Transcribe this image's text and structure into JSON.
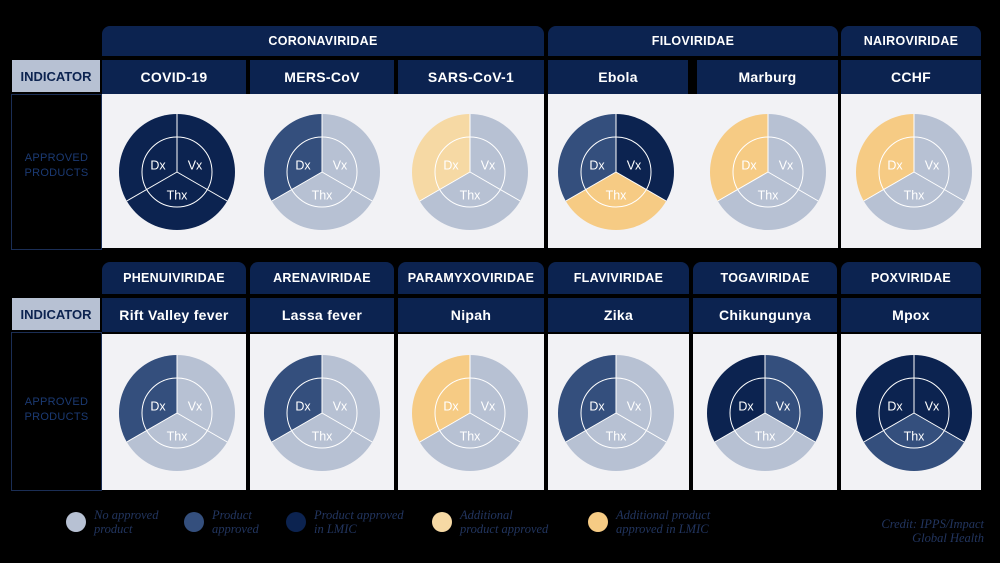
{
  "indicator_label": "INDICATOR",
  "approved_label": [
    "APPROVED",
    "PRODUCTS"
  ],
  "segment_labels": {
    "dx": "Dx",
    "vx": "Vx",
    "thx": "Thx"
  },
  "colors": {
    "none": "#b7c1d3",
    "product": "#344f7d",
    "lmic": "#0c2350",
    "additional": "#f6d9a4",
    "additional_lmic": "#f6cb84"
  },
  "families_top": [
    {
      "name": "CORONAVIRIDAE"
    },
    {
      "name": "FILOVIRIDAE"
    },
    {
      "name": "NAIROVIRIDAE"
    }
  ],
  "viruses_top": [
    {
      "name": "COVID-19",
      "dx": "lmic",
      "vx": "lmic",
      "thx": "lmic"
    },
    {
      "name": "MERS-CoV",
      "dx": "product",
      "vx": "none",
      "thx": "none"
    },
    {
      "name": "SARS-CoV-1",
      "dx": "additional",
      "vx": "none",
      "thx": "none"
    },
    {
      "name": "Ebola",
      "dx": "product",
      "vx": "lmic",
      "thx": "additional_lmic"
    },
    {
      "name": "Marburg",
      "dx": "additional_lmic",
      "vx": "none",
      "thx": "none"
    },
    {
      "name": "CCHF",
      "dx": "additional_lmic",
      "vx": "none",
      "thx": "none"
    }
  ],
  "families_bottom": [
    {
      "name": "PHENUIVIRIDAE"
    },
    {
      "name": "ARENAVIRIDAE"
    },
    {
      "name": "PARAMYXOVIRIDAE"
    },
    {
      "name": "FLAVIVIRIDAE"
    },
    {
      "name": "TOGAVIRIDAE"
    },
    {
      "name": "POXVIRIDAE"
    }
  ],
  "viruses_bottom": [
    {
      "name": "Rift Valley fever",
      "dx": "product",
      "vx": "none",
      "thx": "none"
    },
    {
      "name": "Lassa fever",
      "dx": "product",
      "vx": "none",
      "thx": "none"
    },
    {
      "name": "Nipah",
      "dx": "additional_lmic",
      "vx": "none",
      "thx": "none"
    },
    {
      "name": "Zika",
      "dx": "product",
      "vx": "none",
      "thx": "none"
    },
    {
      "name": "Chikungunya",
      "dx": "lmic",
      "vx": "product",
      "thx": "none"
    },
    {
      "name": "Mpox",
      "dx": "lmic",
      "vx": "lmic",
      "thx": "product"
    }
  ],
  "legend": [
    {
      "key": "none",
      "lines": [
        "No approved",
        "product"
      ]
    },
    {
      "key": "product",
      "lines": [
        "Product",
        "approved"
      ]
    },
    {
      "key": "lmic",
      "lines": [
        "Product approved",
        "in LMIC"
      ]
    },
    {
      "key": "additional",
      "lines": [
        "Additional",
        "product approved"
      ]
    },
    {
      "key": "additional_lmic",
      "lines": [
        "Additional product",
        "approved in LMIC"
      ]
    }
  ],
  "credit": [
    "Credit: IPPS/Impact",
    "Global Health"
  ]
}
